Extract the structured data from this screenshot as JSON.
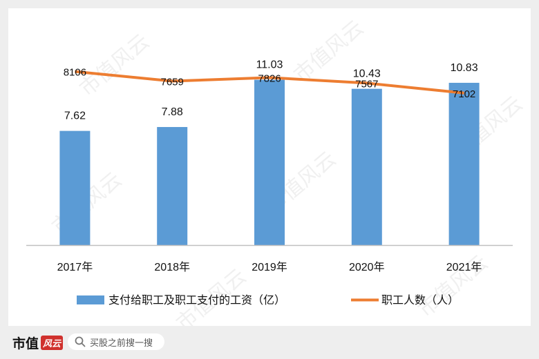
{
  "chart_data": {
    "type": "bar+line",
    "categories": [
      "2017年",
      "2018年",
      "2019年",
      "2020年",
      "2021年"
    ],
    "series": [
      {
        "name": "支付给职工及职工支付的工资（亿）",
        "type": "bar",
        "values": [
          7.62,
          7.88,
          11.03,
          10.43,
          10.83
        ],
        "color": "#5b9bd5"
      },
      {
        "name": "职工人数（人）",
        "type": "line",
        "values": [
          8106,
          7659,
          7826,
          7567,
          7102
        ],
        "color": "#ed7d31"
      }
    ],
    "bar_ylim": [
      0,
      13.5
    ],
    "line_ylim": [
      0,
      9450
    ],
    "grid": false,
    "legend": "bottom"
  },
  "watermark": "市值风云",
  "footer": {
    "brand": "市值",
    "brand_mark": "风云",
    "search_placeholder": "买股之前搜一搜"
  }
}
